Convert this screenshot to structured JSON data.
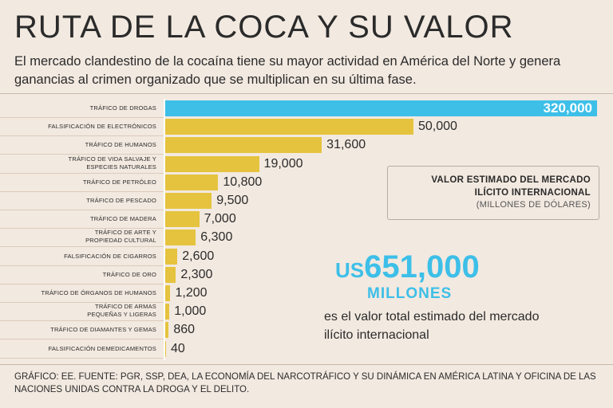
{
  "header": {
    "title": "RUTA DE LA COCA Y SU VALOR",
    "subtitle": "El mercado clandestino de la cocaína tiene su mayor actividad en América del Norte y genera ganancias al crimen organizado que se multiplican en su última fase."
  },
  "chart_data": {
    "type": "bar",
    "orientation": "horizontal",
    "title": "VALOR ESTIMADO DEL MERCADO ILÍCITO INTERNACIONAL",
    "unit_label": "(MILLONES DE DÓLARES)",
    "highlight_color": "#3dbfe8",
    "bar_color": "#e6c33f",
    "categories": [
      "TRÁFICO DE DROGAS",
      "FALSIFICACIÓN DE ELECTRÓNICOS",
      "TRÁFICO DE HUMANOS",
      "TRÁFICO DE VIDA SALVAJE Y ESPECIES NATURALES",
      "TRÁFICO DE PETRÓLEO",
      "TRÁFICO DE PESCADO",
      "TRÁFICO DE MADERA",
      "TRÁFICO DE ARTE Y PROPIEDAD CULTURAL",
      "FALSIFICACIÓN DE CIGARROS",
      "TRÁFICO DE ORO",
      "TRÁFICO DE ÓRGANOS DE HUMANOS",
      "TRÁFICO DE ARMAS PEQUEÑAS Y LIGERAS",
      "TRÁFICO DE DIAMANTES Y GEMAS",
      "FALSIFICACIÓN DEMEDICAMENTOS"
    ],
    "values": [
      320000,
      50000,
      31600,
      19000,
      10800,
      9500,
      7000,
      6300,
      2600,
      2300,
      1200,
      1000,
      860,
      40
    ],
    "value_labels": [
      "320,000",
      "50,000",
      "31,600",
      "19,000",
      "10,800",
      "9,500",
      "7,000",
      "6,300",
      "2,600",
      "2,300",
      "1,200",
      "1,000",
      "860",
      "40"
    ],
    "display_lengths": [
      320000,
      50000,
      31600,
      19000,
      10800,
      9500,
      7000,
      6300,
      2600,
      2300,
      1200,
      1000,
      860,
      300
    ],
    "axis_max": 320000
  },
  "legend": {
    "line1": "VALOR ESTIMADO DEL MERCADO",
    "line2": "ILÍCITO INTERNACIONAL",
    "units": "(MILLONES DE DÓLARES)"
  },
  "total": {
    "currency": "US",
    "amount": "651,000",
    "unit": "MILLONES",
    "description": "es el valor total estimado del mercado ilícito  internacional"
  },
  "footer": {
    "source": "GRÁFICO: EE. FUENTE: PGR, SSP, DEA, LA ECONOMÍA DEL NARCOTRÁFICO Y SU DINÁMICA EN AMÉRICA LATINA Y OFICINA DE LAS NACIONES UNIDAS CONTRA LA DROGA Y EL DELITO."
  }
}
